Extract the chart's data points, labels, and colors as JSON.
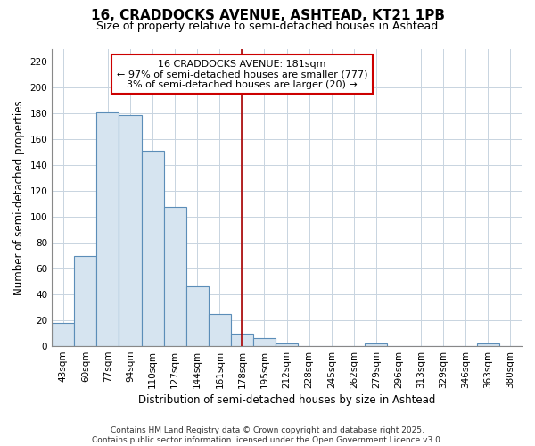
{
  "title1": "16, CRADDOCKS AVENUE, ASHTEAD, KT21 1PB",
  "title2": "Size of property relative to semi-detached houses in Ashtead",
  "xlabel": "Distribution of semi-detached houses by size in Ashtead",
  "ylabel": "Number of semi-detached properties",
  "bar_labels": [
    "43sqm",
    "60sqm",
    "77sqm",
    "94sqm",
    "110sqm",
    "127sqm",
    "144sqm",
    "161sqm",
    "178sqm",
    "195sqm",
    "212sqm",
    "228sqm",
    "245sqm",
    "262sqm",
    "279sqm",
    "296sqm",
    "313sqm",
    "329sqm",
    "346sqm",
    "363sqm",
    "380sqm"
  ],
  "bar_values": [
    18,
    70,
    181,
    179,
    151,
    108,
    46,
    25,
    10,
    6,
    2,
    0,
    0,
    0,
    2,
    0,
    0,
    0,
    0,
    2,
    0
  ],
  "bar_color": "#d6e4f0",
  "bar_edge_color": "#5b8db8",
  "grid_color": "#c8d4e0",
  "bg_color": "#ffffff",
  "annotation_line1": "16 CRADDOCKS AVENUE: 181sqm",
  "annotation_line2": "← 97% of semi-detached houses are smaller (777)",
  "annotation_line3": "3% of semi-detached houses are larger (20) →",
  "annotation_box_color": "white",
  "annotation_box_edge_color": "#cc0000",
  "vline_x_index": 8,
  "vline_color": "#aa0000",
  "ylim": [
    0,
    230
  ],
  "yticks": [
    0,
    20,
    40,
    60,
    80,
    100,
    120,
    140,
    160,
    180,
    200,
    220
  ],
  "footer": "Contains HM Land Registry data © Crown copyright and database right 2025.\nContains public sector information licensed under the Open Government Licence v3.0.",
  "title_fontsize": 11,
  "subtitle_fontsize": 9,
  "axis_label_fontsize": 8.5,
  "tick_fontsize": 7.5,
  "annotation_fontsize": 8,
  "footer_fontsize": 6.5
}
